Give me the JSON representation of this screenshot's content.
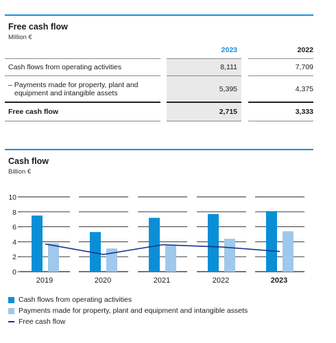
{
  "table": {
    "title": "Free cash flow",
    "unit": "Million €",
    "years": [
      "2023",
      "2022"
    ],
    "rows": [
      {
        "label": "Cash flows from operating activities",
        "values": [
          "8,111",
          "7,709"
        ]
      },
      {
        "label_lines": [
          "– Payments made for property, plant and",
          "equipment and intangible assets"
        ],
        "values": [
          "5,395",
          "4,375"
        ]
      },
      {
        "label": "Free cash flow",
        "values": [
          "2,715",
          "3,333"
        ]
      }
    ],
    "colors": {
      "highlight_year": "#1a8fd6",
      "shade": "#e9e9e9"
    }
  },
  "chart_data": {
    "type": "bar",
    "title": "Cash flow",
    "unit": "Billion €",
    "categories": [
      "2019",
      "2020",
      "2021",
      "2022",
      "2023"
    ],
    "highlight_category": "2023",
    "ylim": [
      0,
      10
    ],
    "yticks": [
      "0",
      "2",
      "4",
      "6",
      "8",
      "10"
    ],
    "grid": true,
    "series": [
      {
        "name": "Cash flows from operating activities",
        "kind": "bar",
        "color": "#0a8fd6",
        "values": [
          7.5,
          5.3,
          7.2,
          7.7,
          8.1
        ]
      },
      {
        "name": "Payments made for property, plant and equipment and intangible assets",
        "kind": "bar",
        "color": "#9fc8ec",
        "values": [
          3.8,
          3.1,
          3.6,
          4.4,
          5.4
        ]
      },
      {
        "name": "Free cash flow",
        "kind": "line",
        "color": "#16358f",
        "values": [
          3.7,
          2.3,
          3.6,
          3.3,
          2.7
        ]
      }
    ],
    "legend_position": "bottom-left"
  }
}
